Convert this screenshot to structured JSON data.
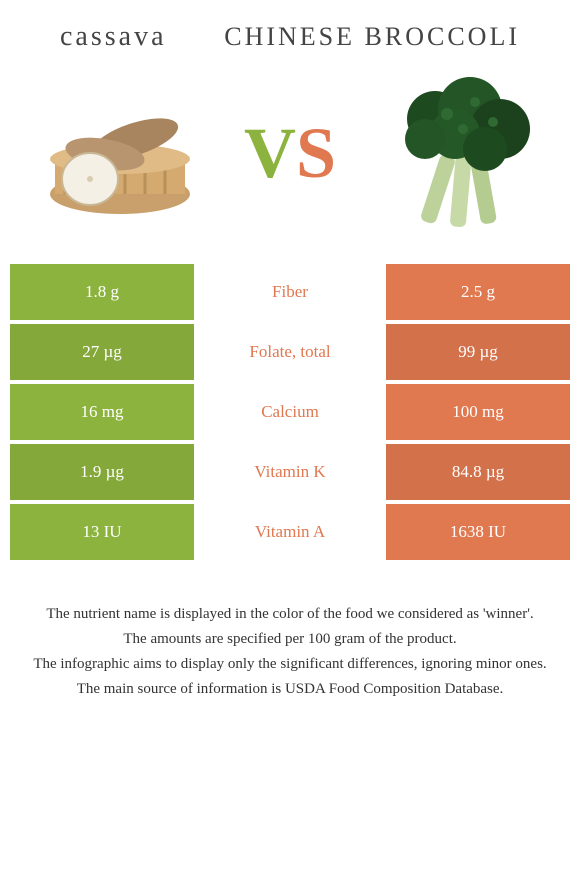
{
  "left_food": {
    "title": "cassava"
  },
  "right_food": {
    "title": "CHINESE BROCCOLI"
  },
  "vs": {
    "v": "V",
    "s": "S"
  },
  "colors": {
    "left_bg": "#8db33f",
    "right_bg": "#e07850",
    "row_alt_darken": 0.94
  },
  "rows": [
    {
      "left": "1.8 g",
      "label": "Fiber",
      "right": "2.5 g",
      "winner": "right"
    },
    {
      "left": "27 µg",
      "label": "Folate, total",
      "right": "99 µg",
      "winner": "right"
    },
    {
      "left": "16 mg",
      "label": "Calcium",
      "right": "100 mg",
      "winner": "right"
    },
    {
      "left": "1.9 µg",
      "label": "Vitamin K",
      "right": "84.8 µg",
      "winner": "right"
    },
    {
      "left": "13 IU",
      "label": "Vitamin A",
      "right": "1638 IU",
      "winner": "right"
    }
  ],
  "footnotes": [
    "The nutrient name is displayed in the color of the food we considered as 'winner'.",
    "The amounts are specified per 100 gram of the product.",
    "The infographic aims to display only the significant differences, ignoring minor ones.",
    "The main source of information is USDA Food Composition Database."
  ]
}
